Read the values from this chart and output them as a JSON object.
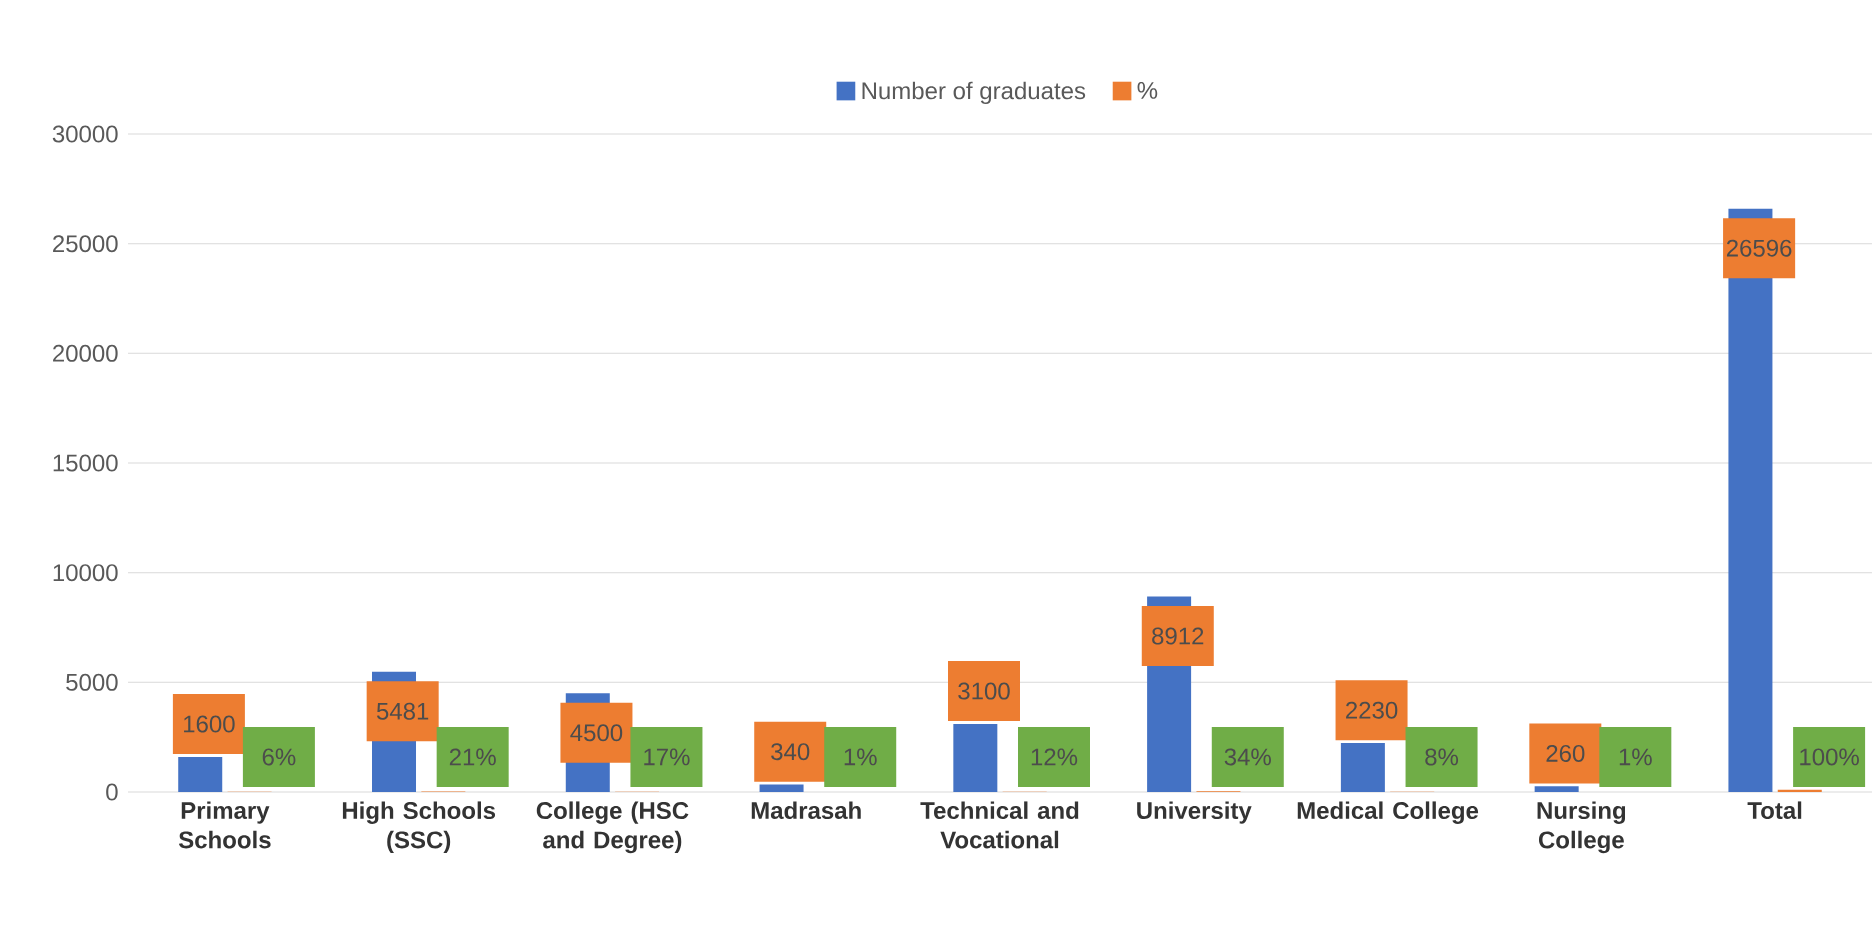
{
  "chart_data": {
    "type": "bar",
    "categories": [
      "Primary Schools",
      "High Schools (SSC)",
      "College (HSC and Degree)",
      "Madrasah",
      "Technical and Vocational",
      "University",
      "Medical College",
      "Nursing College",
      "Total"
    ],
    "series": [
      {
        "name": "Number of graduates",
        "color": "#4472c4",
        "values": [
          1600,
          5481,
          4500,
          340,
          3100,
          8912,
          2230,
          260,
          26596
        ],
        "value_labels": [
          "1600",
          "5481",
          "4500",
          "340",
          "3100",
          "8912",
          "2230",
          "260",
          "26596"
        ]
      },
      {
        "name": "%",
        "color": "#ed7d31",
        "values": [
          6,
          21,
          17,
          1,
          12,
          34,
          8,
          1,
          100
        ],
        "value_labels": [
          "6%",
          "21%",
          "17%",
          "1%",
          "12%",
          "34%",
          "8%",
          "1%",
          "100%"
        ]
      }
    ],
    "ylim": [
      0,
      30000
    ],
    "yticks": [
      0,
      5000,
      10000,
      15000,
      20000,
      25000,
      30000
    ],
    "grid": "y",
    "legend": "top"
  }
}
